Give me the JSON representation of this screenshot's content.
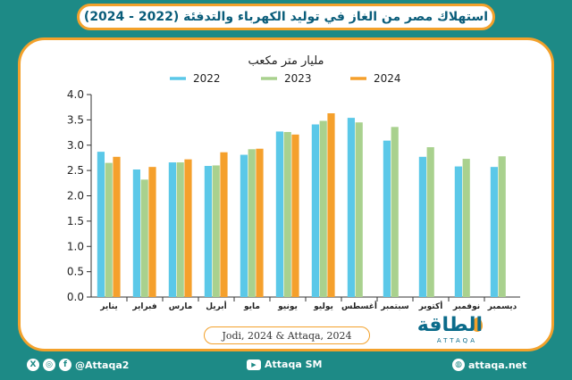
{
  "title": "استهلاك مصر من الغاز في توليد الكهرباء والتدفئة (2022 - 2024)",
  "source": "Jodi, 2024 & Attaqa, 2024",
  "logo": {
    "name": "الطاقة",
    "sub": "ATTAQA"
  },
  "footer": {
    "social_handle": "@Attaqa2",
    "youtube": "Attaqa SM",
    "website": "attaqa.net"
  },
  "colors": {
    "s2022": "#5bc8e8",
    "s2023": "#a9d18e",
    "s2024": "#f5a02c",
    "accent": "#f3a12b",
    "bg": "#1d8a86"
  },
  "chart_data": {
    "type": "bar",
    "title": "مليار متر مكعب",
    "categories": [
      "يناير",
      "فبراير",
      "مارس",
      "أبريل",
      "مايو",
      "يونيو",
      "يوليو",
      "أغسطس",
      "سبتمبر",
      "أكتوبر",
      "نوفمبر",
      "ديسمبر"
    ],
    "series": [
      {
        "name": "2022",
        "values": [
          2.87,
          2.52,
          2.66,
          2.59,
          2.81,
          3.27,
          3.41,
          3.54,
          3.09,
          2.77,
          2.58,
          2.57
        ]
      },
      {
        "name": "2023",
        "values": [
          2.65,
          2.32,
          2.66,
          2.6,
          2.92,
          3.26,
          3.48,
          3.45,
          3.36,
          2.96,
          2.73,
          2.78
        ]
      },
      {
        "name": "2024",
        "values": [
          2.77,
          2.57,
          2.72,
          2.86,
          2.93,
          3.21,
          3.63,
          null,
          null,
          null,
          null,
          null
        ]
      }
    ],
    "yticks": [
      "0.0",
      "0.5",
      "1.0",
      "1.5",
      "2.0",
      "2.5",
      "3.0",
      "3.5",
      "4.0"
    ],
    "ylim": [
      0,
      4.0
    ],
    "grid": false,
    "legend_position": "top"
  }
}
